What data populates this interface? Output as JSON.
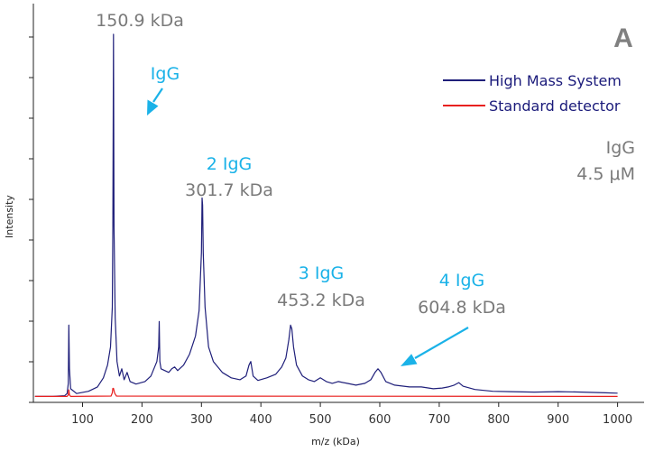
{
  "chart_data": {
    "type": "line",
    "panel_label": "A",
    "xlabel": "m/z (kDa)",
    "ylabel": "Intensity",
    "xlim": [
      20,
      1000
    ],
    "ylim": [
      0,
      100
    ],
    "xticks": [
      100,
      200,
      300,
      400,
      500,
      600,
      700,
      800,
      900,
      1000
    ],
    "tick_labels": [
      "100",
      "200",
      "300",
      "400",
      "500",
      "600",
      "700",
      "800",
      "900",
      "1000"
    ],
    "grid": false,
    "legend_position": "top-right",
    "series": [
      {
        "name": "High Mass System",
        "color": "#1f1f7a",
        "points": [
          [
            20,
            0.4
          ],
          [
            50,
            0.4
          ],
          [
            70,
            0.6
          ],
          [
            74,
            1.2
          ],
          [
            76,
            4
          ],
          [
            77,
            20
          ],
          [
            78,
            8
          ],
          [
            80,
            2.5
          ],
          [
            90,
            1.2
          ],
          [
            110,
            1.8
          ],
          [
            125,
            3
          ],
          [
            135,
            5.5
          ],
          [
            142,
            9
          ],
          [
            147,
            14
          ],
          [
            150,
            25
          ],
          [
            151,
            47
          ],
          [
            152,
            100
          ],
          [
            153,
            47
          ],
          [
            155,
            22
          ],
          [
            158,
            10
          ],
          [
            162,
            6
          ],
          [
            166,
            8
          ],
          [
            170,
            5
          ],
          [
            175,
            7
          ],
          [
            180,
            4.5
          ],
          [
            190,
            3.8
          ],
          [
            205,
            4.5
          ],
          [
            215,
            6
          ],
          [
            225,
            10
          ],
          [
            228,
            14
          ],
          [
            229,
            21
          ],
          [
            230,
            10
          ],
          [
            232,
            8
          ],
          [
            245,
            7
          ],
          [
            250,
            8
          ],
          [
            255,
            8.5
          ],
          [
            260,
            7.5
          ],
          [
            270,
            9
          ],
          [
            280,
            12
          ],
          [
            290,
            17
          ],
          [
            296,
            24
          ],
          [
            300,
            40
          ],
          [
            301,
            55
          ],
          [
            302,
            53
          ],
          [
            303,
            40
          ],
          [
            306,
            25
          ],
          [
            312,
            14
          ],
          [
            320,
            10
          ],
          [
            335,
            7
          ],
          [
            350,
            5.5
          ],
          [
            365,
            5
          ],
          [
            375,
            6
          ],
          [
            380,
            9
          ],
          [
            383,
            10
          ],
          [
            387,
            6
          ],
          [
            395,
            4.8
          ],
          [
            410,
            5.5
          ],
          [
            425,
            6.5
          ],
          [
            435,
            8.5
          ],
          [
            442,
            11
          ],
          [
            447,
            16
          ],
          [
            450,
            20
          ],
          [
            452,
            19
          ],
          [
            455,
            14
          ],
          [
            460,
            9
          ],
          [
            470,
            6
          ],
          [
            480,
            5
          ],
          [
            490,
            4.5
          ],
          [
            500,
            5.5
          ],
          [
            510,
            4.5
          ],
          [
            520,
            4
          ],
          [
            530,
            4.5
          ],
          [
            545,
            4
          ],
          [
            560,
            3.5
          ],
          [
            575,
            4
          ],
          [
            585,
            5
          ],
          [
            592,
            7
          ],
          [
            597,
            8
          ],
          [
            602,
            7
          ],
          [
            610,
            4.5
          ],
          [
            625,
            3.5
          ],
          [
            650,
            3
          ],
          [
            670,
            3
          ],
          [
            690,
            2.5
          ],
          [
            705,
            2.7
          ],
          [
            715,
            3
          ],
          [
            725,
            3.5
          ],
          [
            733,
            4.2
          ],
          [
            740,
            3.2
          ],
          [
            760,
            2.3
          ],
          [
            790,
            1.8
          ],
          [
            820,
            1.7
          ],
          [
            860,
            1.6
          ],
          [
            900,
            1.7
          ],
          [
            940,
            1.6
          ],
          [
            980,
            1.4
          ],
          [
            1000,
            1.3
          ]
        ]
      },
      {
        "name": "Standard detector",
        "color": "#e8201f",
        "points": [
          [
            20,
            0.4
          ],
          [
            74,
            0.4
          ],
          [
            76,
            0.8
          ],
          [
            77,
            2.2
          ],
          [
            78,
            0.8
          ],
          [
            80,
            0.4
          ],
          [
            148,
            0.5
          ],
          [
            150,
            1.4
          ],
          [
            151,
            2.6
          ],
          [
            152,
            2.6
          ],
          [
            154,
            1.3
          ],
          [
            157,
            0.5
          ],
          [
            1000,
            0.4
          ]
        ]
      }
    ],
    "annotations": [
      {
        "text": "150.9 kDa",
        "color": "#7a7a7a"
      },
      {
        "text": "IgG",
        "color": "#1ab2e8"
      },
      {
        "text": "2 IgG",
        "color": "#1ab2e8"
      },
      {
        "text": "301.7 kDa",
        "color": "#7a7a7a"
      },
      {
        "text": "3 IgG",
        "color": "#1ab2e8"
      },
      {
        "text": "453.2 kDa",
        "color": "#7a7a7a"
      },
      {
        "text": "4 IgG",
        "color": "#1ab2e8"
      },
      {
        "text": "604.8 kDa",
        "color": "#7a7a7a"
      },
      {
        "text": "IgG",
        "color": "#7a7a7a"
      },
      {
        "text": "4.5 μM",
        "color": "#7a7a7a"
      }
    ],
    "arrows": [
      {
        "label": "IgG",
        "x": 152
      },
      {
        "label": "4 IgG",
        "x": 600
      }
    ]
  }
}
